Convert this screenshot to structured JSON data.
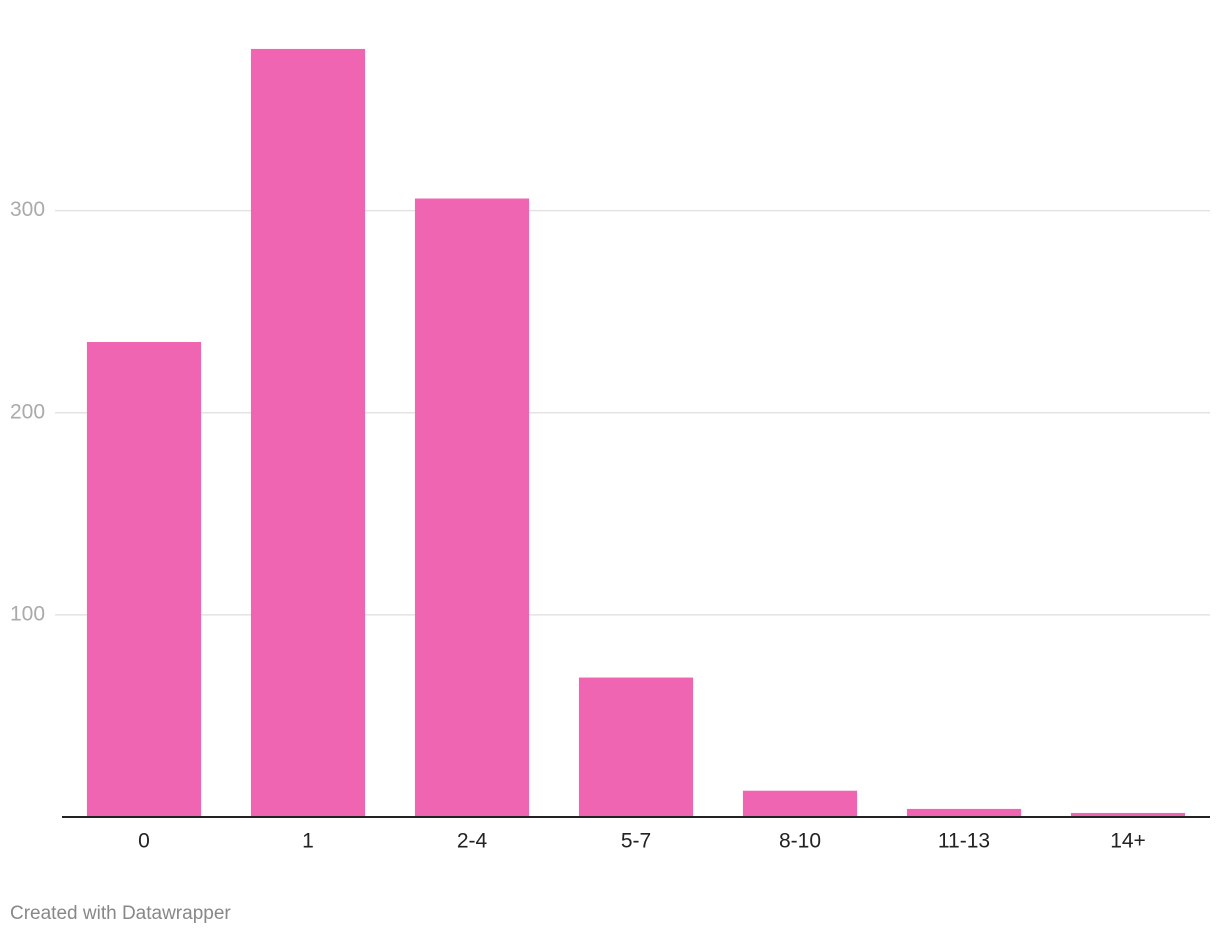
{
  "chart_data": {
    "type": "bar",
    "categories": [
      "0",
      "1",
      "2-4",
      "5-7",
      "8-10",
      "11-13",
      "14+"
    ],
    "values": [
      235,
      380,
      306,
      69,
      13,
      4,
      2
    ],
    "color": "#f065b2",
    "ylim": [
      0,
      400
    ],
    "yticks": [
      100,
      200,
      300
    ],
    "grid": true
  },
  "credit": "Created with Datawrapper"
}
